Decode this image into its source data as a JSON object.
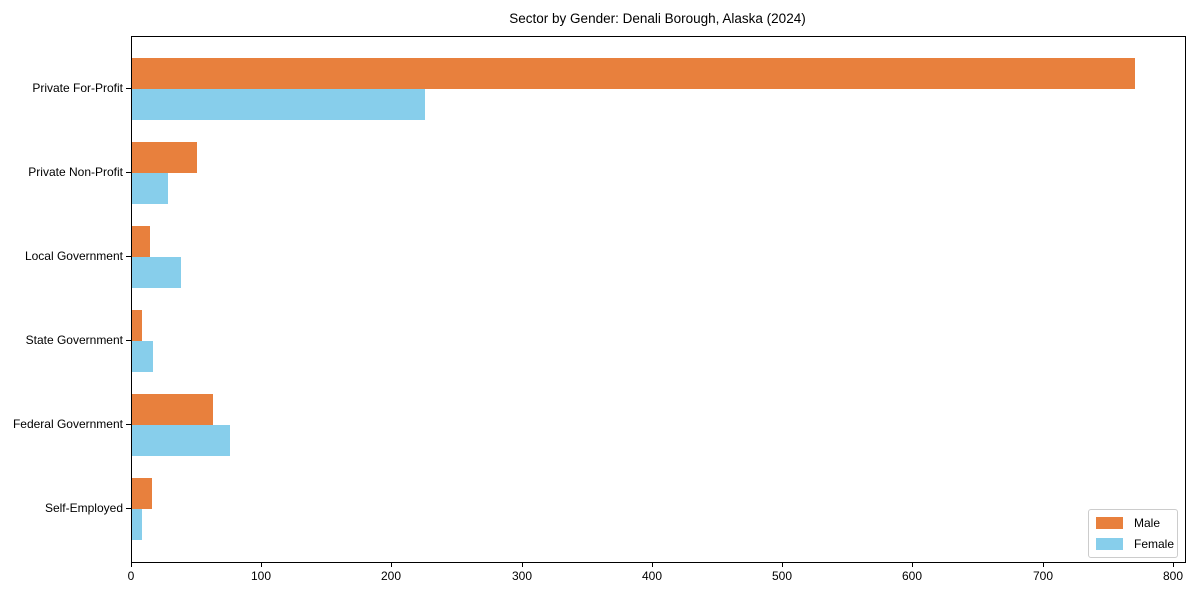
{
  "title": "Sector by Gender: Denali Borough, Alaska (2024)",
  "chart_data": {
    "type": "bar",
    "orientation": "horizontal",
    "title": "Sector by Gender: Denali Borough, Alaska (2024)",
    "xlabel": "",
    "ylabel": "",
    "categories": [
      "Private For-Profit",
      "Private Non-Profit",
      "Local Government",
      "State Government",
      "Federal Government",
      "Self-Employed"
    ],
    "series": [
      {
        "name": "Male",
        "color": "#e8803d",
        "values": [
          770,
          50,
          14,
          8,
          62,
          15
        ]
      },
      {
        "name": "Female",
        "color": "#87ceeb",
        "values": [
          225,
          28,
          38,
          16,
          75,
          8
        ]
      }
    ],
    "xlim": [
      0,
      808.5
    ],
    "xticks": [
      0,
      100,
      200,
      300,
      400,
      500,
      600,
      700,
      800
    ],
    "xtick_labels": [
      "0",
      "100",
      "200",
      "300",
      "400",
      "500",
      "600",
      "700",
      "800"
    ],
    "grid": false,
    "legend_position": "lower right"
  },
  "legend": {
    "items": [
      {
        "label": "Male",
        "color": "#e8803d"
      },
      {
        "label": "Female",
        "color": "#87ceeb"
      }
    ]
  }
}
